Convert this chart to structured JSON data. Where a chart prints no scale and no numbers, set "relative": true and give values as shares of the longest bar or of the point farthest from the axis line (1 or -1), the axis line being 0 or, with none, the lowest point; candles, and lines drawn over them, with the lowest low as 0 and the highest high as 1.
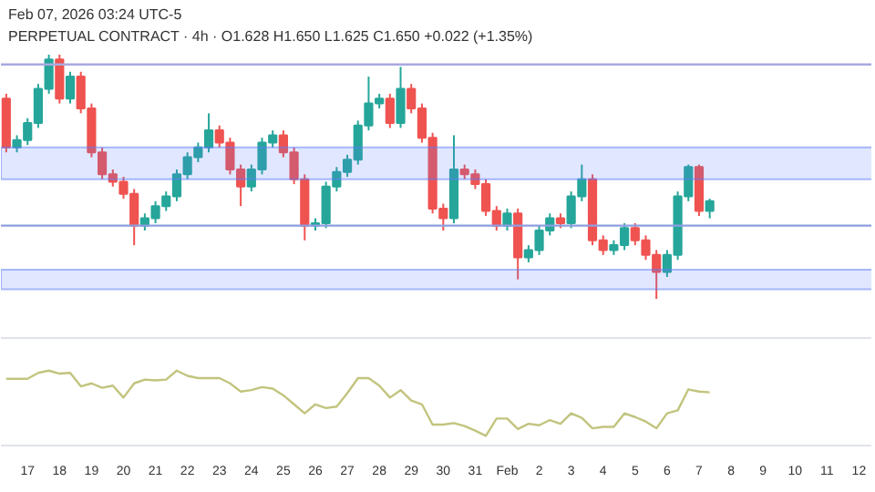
{
  "chart_data": [
    {
      "type": "candlestick",
      "relative": true,
      "tick_labels": false,
      "grid": false,
      "xlim": [
        "2026-01-16T04:00",
        "2026-02-12T10:00"
      ],
      "x": [
        "2026-01-16T08:00",
        "2026-01-16T16:00",
        "2026-01-17T00:00",
        "2026-01-17T08:00",
        "2026-01-17T16:00",
        "2026-01-18T00:00",
        "2026-01-18T08:00",
        "2026-01-18T16:00",
        "2026-01-19T00:00",
        "2026-01-19T08:00",
        "2026-01-19T16:00",
        "2026-01-20T00:00",
        "2026-01-20T08:00",
        "2026-01-20T16:00",
        "2026-01-21T00:00",
        "2026-01-21T08:00",
        "2026-01-21T16:00",
        "2026-01-22T00:00",
        "2026-01-22T08:00",
        "2026-01-22T16:00",
        "2026-01-23T00:00",
        "2026-01-23T08:00",
        "2026-01-23T16:00",
        "2026-01-24T00:00",
        "2026-01-24T08:00",
        "2026-01-24T16:00",
        "2026-01-25T00:00",
        "2026-01-25T08:00",
        "2026-01-25T16:00",
        "2026-01-26T00:00",
        "2026-01-26T08:00",
        "2026-01-26T16:00",
        "2026-01-27T00:00",
        "2026-01-27T08:00",
        "2026-01-27T16:00",
        "2026-01-28T00:00",
        "2026-01-28T08:00",
        "2026-01-28T16:00",
        "2026-01-29T00:00",
        "2026-01-29T08:00",
        "2026-01-29T16:00",
        "2026-01-30T00:00",
        "2026-01-30T08:00",
        "2026-01-30T16:00",
        "2026-01-31T00:00",
        "2026-01-31T08:00",
        "2026-01-31T16:00",
        "2026-02-01T00:00",
        "2026-02-01T08:00",
        "2026-02-01T16:00",
        "2026-02-02T00:00",
        "2026-02-02T08:00",
        "2026-02-02T16:00",
        "2026-02-03T00:00",
        "2026-02-03T08:00",
        "2026-02-03T16:00",
        "2026-02-04T00:00",
        "2026-02-04T08:00",
        "2026-02-04T16:00",
        "2026-02-05T00:00",
        "2026-02-05T08:00",
        "2026-02-05T16:00",
        "2026-02-06T00:00",
        "2026-02-06T08:00",
        "2026-02-06T16:00",
        "2026-02-07T00:00",
        "2026-02-07T08:00"
      ],
      "ohlc": [
        [
          0.82,
          0.84,
          0.6,
          0.62
        ],
        [
          0.62,
          0.67,
          0.6,
          0.65
        ],
        [
          0.65,
          0.74,
          0.63,
          0.72
        ],
        [
          0.72,
          0.88,
          0.7,
          0.86
        ],
        [
          0.86,
          1.0,
          0.84,
          0.98
        ],
        [
          0.98,
          1.0,
          0.8,
          0.82
        ],
        [
          0.82,
          0.93,
          0.8,
          0.91
        ],
        [
          0.91,
          0.93,
          0.76,
          0.78
        ],
        [
          0.78,
          0.8,
          0.58,
          0.6
        ],
        [
          0.6,
          0.62,
          0.49,
          0.51
        ],
        [
          0.51,
          0.53,
          0.46,
          0.48
        ],
        [
          0.48,
          0.5,
          0.41,
          0.43
        ],
        [
          0.43,
          0.45,
          0.22,
          0.3
        ],
        [
          0.3,
          0.35,
          0.28,
          0.33
        ],
        [
          0.33,
          0.4,
          0.31,
          0.38
        ],
        [
          0.38,
          0.44,
          0.36,
          0.42
        ],
        [
          0.42,
          0.53,
          0.4,
          0.51
        ],
        [
          0.51,
          0.6,
          0.49,
          0.58
        ],
        [
          0.58,
          0.64,
          0.56,
          0.62
        ],
        [
          0.62,
          0.76,
          0.6,
          0.69
        ],
        [
          0.69,
          0.71,
          0.62,
          0.64
        ],
        [
          0.64,
          0.66,
          0.51,
          0.53
        ],
        [
          0.53,
          0.55,
          0.38,
          0.46
        ],
        [
          0.46,
          0.55,
          0.44,
          0.53
        ],
        [
          0.53,
          0.66,
          0.51,
          0.64
        ],
        [
          0.64,
          0.69,
          0.62,
          0.67
        ],
        [
          0.67,
          0.69,
          0.58,
          0.6
        ],
        [
          0.6,
          0.62,
          0.47,
          0.49
        ],
        [
          0.49,
          0.51,
          0.24,
          0.3
        ],
        [
          0.3,
          0.33,
          0.28,
          0.31
        ],
        [
          0.31,
          0.48,
          0.29,
          0.46
        ],
        [
          0.46,
          0.54,
          0.44,
          0.52
        ],
        [
          0.52,
          0.59,
          0.5,
          0.57
        ],
        [
          0.57,
          0.73,
          0.55,
          0.71
        ],
        [
          0.71,
          0.91,
          0.69,
          0.8
        ],
        [
          0.8,
          0.84,
          0.78,
          0.82
        ],
        [
          0.82,
          0.84,
          0.7,
          0.72
        ],
        [
          0.72,
          0.95,
          0.7,
          0.86
        ],
        [
          0.86,
          0.88,
          0.76,
          0.78
        ],
        [
          0.78,
          0.8,
          0.64,
          0.66
        ],
        [
          0.66,
          0.68,
          0.35,
          0.37
        ],
        [
          0.37,
          0.39,
          0.28,
          0.33
        ],
        [
          0.33,
          0.67,
          0.31,
          0.53
        ],
        [
          0.53,
          0.55,
          0.49,
          0.51
        ],
        [
          0.51,
          0.53,
          0.45,
          0.47
        ],
        [
          0.47,
          0.49,
          0.34,
          0.36
        ],
        [
          0.36,
          0.38,
          0.28,
          0.3
        ],
        [
          0.3,
          0.37,
          0.28,
          0.35
        ],
        [
          0.35,
          0.37,
          0.08,
          0.17
        ],
        [
          0.17,
          0.22,
          0.15,
          0.2
        ],
        [
          0.2,
          0.3,
          0.18,
          0.28
        ],
        [
          0.28,
          0.35,
          0.26,
          0.33
        ],
        [
          0.33,
          0.35,
          0.29,
          0.31
        ],
        [
          0.31,
          0.44,
          0.29,
          0.42
        ],
        [
          0.42,
          0.55,
          0.4,
          0.49
        ],
        [
          0.49,
          0.51,
          0.22,
          0.24
        ],
        [
          0.24,
          0.26,
          0.18,
          0.2
        ],
        [
          0.2,
          0.24,
          0.18,
          0.22
        ],
        [
          0.22,
          0.31,
          0.2,
          0.29
        ],
        [
          0.29,
          0.31,
          0.22,
          0.24
        ],
        [
          0.24,
          0.26,
          0.16,
          0.18
        ],
        [
          0.18,
          0.2,
          0.0,
          0.11
        ],
        [
          0.11,
          0.2,
          0.09,
          0.18
        ],
        [
          0.18,
          0.44,
          0.16,
          0.42
        ],
        [
          0.42,
          0.55,
          0.4,
          0.54
        ],
        [
          0.54,
          0.55,
          0.34,
          0.36
        ],
        [
          0.36,
          0.41,
          0.33,
          0.4
        ]
      ],
      "ref_lines": [
        {
          "axis": "y",
          "value": 0.96,
          "color": "#a9a9e0"
        },
        {
          "axis": "y",
          "value": 0.3,
          "color": "#8d9ee0"
        }
      ],
      "bands": [
        {
          "axis": "y",
          "from": 0.49,
          "to": 0.62,
          "color": "#5b7cfa"
        },
        {
          "axis": "y",
          "from": 0.04,
          "to": 0.12,
          "color": "#5b7cfa"
        }
      ],
      "annotations": [
        "Feb 07, 2026 03:24 UTC-5",
        "PERPETUAL CONTRACT · 4h · O1.628 H1.650 L1.625 C1.650 +0.022 (+1.35%)"
      ]
    },
    {
      "type": "line",
      "relative": true,
      "tick_labels": "x",
      "grid": false,
      "xlim": [
        "2026-01-16T04:00",
        "2026-02-12T10:00"
      ],
      "xticks": [
        {
          "value": "2026-01-17",
          "label": "17"
        },
        {
          "value": "2026-01-18",
          "label": "18"
        },
        {
          "value": "2026-01-19",
          "label": "19"
        },
        {
          "value": "2026-01-20",
          "label": "20"
        },
        {
          "value": "2026-01-21",
          "label": "21"
        },
        {
          "value": "2026-01-22",
          "label": "22"
        },
        {
          "value": "2026-01-23",
          "label": "23"
        },
        {
          "value": "2026-01-24",
          "label": "24"
        },
        {
          "value": "2026-01-25",
          "label": "25"
        },
        {
          "value": "2026-01-26",
          "label": "26"
        },
        {
          "value": "2026-01-27",
          "label": "27"
        },
        {
          "value": "2026-01-28",
          "label": "28"
        },
        {
          "value": "2026-01-29",
          "label": "29"
        },
        {
          "value": "2026-01-30",
          "label": "30"
        },
        {
          "value": "2026-01-31",
          "label": "31"
        },
        {
          "value": "2026-02-01",
          "label": "Feb"
        },
        {
          "value": "2026-02-02",
          "label": "2"
        },
        {
          "value": "2026-02-03",
          "label": "3"
        },
        {
          "value": "2026-02-04",
          "label": "4"
        },
        {
          "value": "2026-02-05",
          "label": "5"
        },
        {
          "value": "2026-02-06",
          "label": "6"
        },
        {
          "value": "2026-02-07",
          "label": "7"
        },
        {
          "value": "2026-02-08",
          "label": "8"
        },
        {
          "value": "2026-02-09",
          "label": "9"
        },
        {
          "value": "2026-02-10",
          "label": "10"
        },
        {
          "value": "2026-02-11",
          "label": "11"
        },
        {
          "value": "2026-02-12",
          "label": "12"
        }
      ],
      "x": [
        "2026-01-16T08:00",
        "2026-01-16T16:00",
        "2026-01-17T00:00",
        "2026-01-17T08:00",
        "2026-01-17T16:00",
        "2026-01-18T00:00",
        "2026-01-18T08:00",
        "2026-01-18T16:00",
        "2026-01-19T00:00",
        "2026-01-19T08:00",
        "2026-01-19T16:00",
        "2026-01-20T00:00",
        "2026-01-20T08:00",
        "2026-01-20T16:00",
        "2026-01-21T00:00",
        "2026-01-21T08:00",
        "2026-01-21T16:00",
        "2026-01-22T00:00",
        "2026-01-22T08:00",
        "2026-01-22T16:00",
        "2026-01-23T00:00",
        "2026-01-23T08:00",
        "2026-01-23T16:00",
        "2026-01-24T00:00",
        "2026-01-24T08:00",
        "2026-01-24T16:00",
        "2026-01-25T00:00",
        "2026-01-25T08:00",
        "2026-01-25T16:00",
        "2026-01-26T00:00",
        "2026-01-26T08:00",
        "2026-01-26T16:00",
        "2026-01-27T00:00",
        "2026-01-27T08:00",
        "2026-01-27T16:00",
        "2026-01-28T00:00",
        "2026-01-28T08:00",
        "2026-01-28T16:00",
        "2026-01-29T00:00",
        "2026-01-29T08:00",
        "2026-01-29T16:00",
        "2026-01-30T00:00",
        "2026-01-30T08:00",
        "2026-01-30T16:00",
        "2026-01-31T00:00",
        "2026-01-31T08:00",
        "2026-01-31T16:00",
        "2026-02-01T00:00",
        "2026-02-01T08:00",
        "2026-02-01T16:00",
        "2026-02-02T00:00",
        "2026-02-02T08:00",
        "2026-02-02T16:00",
        "2026-02-03T00:00",
        "2026-02-03T08:00",
        "2026-02-03T16:00",
        "2026-02-04T00:00",
        "2026-02-04T08:00",
        "2026-02-04T16:00",
        "2026-02-05T00:00",
        "2026-02-05T08:00",
        "2026-02-05T16:00",
        "2026-02-06T00:00",
        "2026-02-06T08:00",
        "2026-02-06T16:00",
        "2026-02-07T00:00",
        "2026-02-07T08:00"
      ],
      "series": [
        {
          "color": "#c2c47e",
          "values": [
            0.89,
            0.89,
            0.89,
            0.97,
            1.0,
            0.96,
            0.97,
            0.79,
            0.83,
            0.77,
            0.8,
            0.64,
            0.83,
            0.88,
            0.87,
            0.88,
            1.0,
            0.93,
            0.9,
            0.9,
            0.9,
            0.83,
            0.72,
            0.74,
            0.78,
            0.76,
            0.67,
            0.55,
            0.43,
            0.55,
            0.5,
            0.52,
            0.7,
            0.9,
            0.9,
            0.8,
            0.64,
            0.74,
            0.6,
            0.55,
            0.28,
            0.28,
            0.3,
            0.26,
            0.2,
            0.13,
            0.36,
            0.36,
            0.22,
            0.29,
            0.27,
            0.34,
            0.29,
            0.43,
            0.37,
            0.23,
            0.25,
            0.25,
            0.43,
            0.38,
            0.32,
            0.23,
            0.43,
            0.47,
            0.75,
            0.72,
            0.71
          ]
        }
      ]
    }
  ]
}
